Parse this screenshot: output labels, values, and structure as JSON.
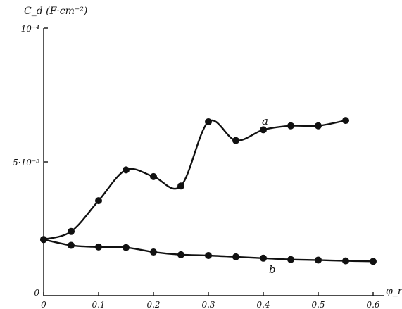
{
  "chart_data": {
    "type": "line",
    "ylabel": "C_d (F·cm⁻²)",
    "xlabel": "φ_r (V)",
    "xlim": [
      0,
      0.6
    ],
    "ylim": [
      0,
      0.0001
    ],
    "x_ticks": [
      {
        "value": 0,
        "label": "0"
      },
      {
        "value": 0.1,
        "label": "0.1"
      },
      {
        "value": 0.2,
        "label": "0.2"
      },
      {
        "value": 0.3,
        "label": "0.3"
      },
      {
        "value": 0.4,
        "label": "0.4"
      },
      {
        "value": 0.5,
        "label": "0.5"
      },
      {
        "value": 0.6,
        "label": "0.6"
      }
    ],
    "y_ticks": [
      {
        "value": 0,
        "label": "0"
      },
      {
        "value": 5e-05,
        "label": "5·10⁻⁵"
      },
      {
        "value": 0.0001,
        "label": "10⁻⁴"
      }
    ],
    "grid": false,
    "legend": "none",
    "series": [
      {
        "name": "a",
        "points": [
          {
            "x": 0,
            "y": 2.1e-05
          },
          {
            "x": 0.05,
            "y": 2.4e-05
          },
          {
            "x": 0.1,
            "y": 3.55e-05
          },
          {
            "x": 0.15,
            "y": 4.7e-05
          },
          {
            "x": 0.2,
            "y": 4.45e-05
          },
          {
            "x": 0.25,
            "y": 4.1e-05
          },
          {
            "x": 0.3,
            "y": 6.5e-05
          },
          {
            "x": 0.35,
            "y": 5.8e-05
          },
          {
            "x": 0.4,
            "y": 6.2e-05
          },
          {
            "x": 0.45,
            "y": 6.35e-05
          },
          {
            "x": 0.5,
            "y": 6.35e-05
          },
          {
            "x": 0.55,
            "y": 6.55e-05
          }
        ]
      },
      {
        "name": "b",
        "points": [
          {
            "x": 0,
            "y": 2.1e-05
          },
          {
            "x": 0.05,
            "y": 1.88e-05
          },
          {
            "x": 0.1,
            "y": 1.82e-05
          },
          {
            "x": 0.15,
            "y": 1.8e-05
          },
          {
            "x": 0.2,
            "y": 1.63e-05
          },
          {
            "x": 0.25,
            "y": 1.53e-05
          },
          {
            "x": 0.3,
            "y": 1.5e-05
          },
          {
            "x": 0.35,
            "y": 1.45e-05
          },
          {
            "x": 0.4,
            "y": 1.4e-05
          },
          {
            "x": 0.45,
            "y": 1.35e-05
          },
          {
            "x": 0.5,
            "y": 1.33e-05
          },
          {
            "x": 0.55,
            "y": 1.3e-05
          },
          {
            "x": 0.6,
            "y": 1.28e-05
          }
        ]
      }
    ]
  }
}
